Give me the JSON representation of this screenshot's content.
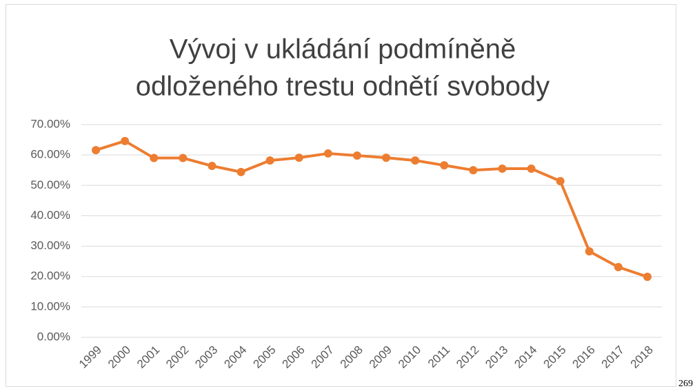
{
  "chart_data": {
    "type": "line",
    "title": [
      "Vývoj v ukládání podmíněně",
      "odloženého trestu odnětí svobody"
    ],
    "categories": [
      "1999",
      "2000",
      "2001",
      "2002",
      "2003",
      "2004",
      "2005",
      "2006",
      "2007",
      "2008",
      "2009",
      "2010",
      "2011",
      "2012",
      "2013",
      "2014",
      "2015",
      "2016",
      "2017",
      "2018"
    ],
    "values": [
      61.6,
      64.6,
      59.0,
      59.0,
      56.4,
      54.4,
      58.2,
      59.1,
      60.5,
      59.8,
      59.1,
      58.2,
      56.6,
      55.0,
      55.5,
      55.5,
      51.4,
      28.3,
      23.1,
      19.9
    ],
    "color": "#ED7D31",
    "ylim": [
      0,
      70
    ],
    "yticks": [
      {
        "value": 0,
        "label": "0.00%"
      },
      {
        "value": 10,
        "label": "10.00%"
      },
      {
        "value": 20,
        "label": "20.00%"
      },
      {
        "value": 30,
        "label": "30.00%"
      },
      {
        "value": 40,
        "label": "40.00%"
      },
      {
        "value": 50,
        "label": "50.00%"
      },
      {
        "value": 60,
        "label": "60.00%"
      },
      {
        "value": 70,
        "label": "70.00%"
      }
    ],
    "grid": true
  },
  "page_number": "269"
}
